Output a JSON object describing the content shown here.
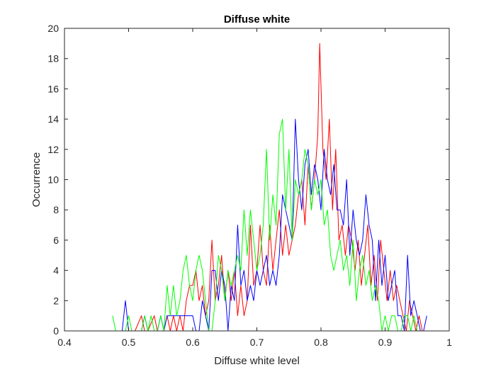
{
  "chart_data": {
    "type": "line",
    "title": "Diffuse white",
    "xlabel": "Diffuse white level",
    "ylabel": "Occurrence",
    "xlim": [
      0.4,
      1.0
    ],
    "ylim": [
      0,
      20
    ],
    "x_ticks": [
      "0.4",
      "0.5",
      "0.6",
      "0.7",
      "0.8",
      "0.9",
      "1"
    ],
    "y_ticks": [
      "0",
      "2",
      "4",
      "6",
      "8",
      "10",
      "12",
      "14",
      "16",
      "18",
      "20"
    ],
    "grid": false,
    "legend": "none",
    "series": [
      {
        "color": "#ff0000",
        "points": [
          [
            0.475,
            0
          ],
          [
            0.49,
            0
          ],
          [
            0.51,
            0
          ],
          [
            0.52,
            1
          ],
          [
            0.525,
            0
          ],
          [
            0.53,
            0
          ],
          [
            0.54,
            1
          ],
          [
            0.545,
            0
          ],
          [
            0.55,
            0
          ],
          [
            0.555,
            0
          ],
          [
            0.56,
            1
          ],
          [
            0.565,
            0
          ],
          [
            0.57,
            1
          ],
          [
            0.575,
            0
          ],
          [
            0.58,
            1
          ],
          [
            0.585,
            0
          ],
          [
            0.59,
            2
          ],
          [
            0.595,
            3
          ],
          [
            0.6,
            3
          ],
          [
            0.605,
            4
          ],
          [
            0.61,
            2
          ],
          [
            0.615,
            3
          ],
          [
            0.62,
            1
          ],
          [
            0.625,
            2
          ],
          [
            0.63,
            6
          ],
          [
            0.635,
            2
          ],
          [
            0.64,
            3
          ],
          [
            0.645,
            5
          ],
          [
            0.65,
            2
          ],
          [
            0.655,
            4
          ],
          [
            0.66,
            2
          ],
          [
            0.665,
            4
          ],
          [
            0.67,
            1
          ],
          [
            0.675,
            3
          ],
          [
            0.68,
            1
          ],
          [
            0.685,
            2
          ],
          [
            0.69,
            7
          ],
          [
            0.695,
            3
          ],
          [
            0.7,
            4
          ],
          [
            0.705,
            7
          ],
          [
            0.71,
            4
          ],
          [
            0.715,
            3
          ],
          [
            0.72,
            7
          ],
          [
            0.725,
            4
          ],
          [
            0.73,
            6
          ],
          [
            0.735,
            8
          ],
          [
            0.74,
            5
          ],
          [
            0.745,
            7
          ],
          [
            0.75,
            5
          ],
          [
            0.755,
            6
          ],
          [
            0.76,
            7
          ],
          [
            0.765,
            9
          ],
          [
            0.77,
            10
          ],
          [
            0.775,
            7
          ],
          [
            0.78,
            11
          ],
          [
            0.785,
            8
          ],
          [
            0.79,
            10
          ],
          [
            0.795,
            13
          ],
          [
            0.798,
            19
          ],
          [
            0.803,
            12
          ],
          [
            0.808,
            10
          ],
          [
            0.813,
            14
          ],
          [
            0.818,
            8
          ],
          [
            0.823,
            12
          ],
          [
            0.828,
            6
          ],
          [
            0.833,
            7
          ],
          [
            0.838,
            5
          ],
          [
            0.843,
            7
          ],
          [
            0.848,
            6
          ],
          [
            0.853,
            4
          ],
          [
            0.858,
            6
          ],
          [
            0.863,
            3
          ],
          [
            0.868,
            5
          ],
          [
            0.873,
            7
          ],
          [
            0.878,
            3
          ],
          [
            0.883,
            5
          ],
          [
            0.888,
            2
          ],
          [
            0.893,
            6
          ],
          [
            0.898,
            4
          ],
          [
            0.903,
            2
          ],
          [
            0.908,
            4
          ],
          [
            0.913,
            2
          ],
          [
            0.918,
            3
          ],
          [
            0.923,
            2
          ],
          [
            0.928,
            1
          ],
          [
            0.933,
            0
          ],
          [
            0.938,
            2
          ],
          [
            0.943,
            1
          ],
          [
            0.948,
            0
          ],
          [
            0.953,
            1
          ],
          [
            0.958,
            0
          ]
        ]
      },
      {
        "color": "#0000ff",
        "points": [
          [
            0.475,
            0
          ],
          [
            0.49,
            0
          ],
          [
            0.495,
            2
          ],
          [
            0.5,
            0
          ],
          [
            0.51,
            0
          ],
          [
            0.52,
            0
          ],
          [
            0.525,
            1
          ],
          [
            0.53,
            0
          ],
          [
            0.545,
            0
          ],
          [
            0.55,
            1
          ],
          [
            0.555,
            0
          ],
          [
            0.56,
            1
          ],
          [
            0.57,
            1
          ],
          [
            0.575,
            1
          ],
          [
            0.58,
            1
          ],
          [
            0.59,
            1
          ],
          [
            0.6,
            1
          ],
          [
            0.605,
            0
          ],
          [
            0.61,
            0
          ],
          [
            0.615,
            2
          ],
          [
            0.62,
            1
          ],
          [
            0.625,
            0
          ],
          [
            0.63,
            4
          ],
          [
            0.635,
            4
          ],
          [
            0.64,
            2
          ],
          [
            0.645,
            4
          ],
          [
            0.65,
            3
          ],
          [
            0.655,
            0
          ],
          [
            0.66,
            3
          ],
          [
            0.665,
            2
          ],
          [
            0.67,
            7
          ],
          [
            0.675,
            3
          ],
          [
            0.68,
            4
          ],
          [
            0.685,
            2
          ],
          [
            0.69,
            3
          ],
          [
            0.695,
            2
          ],
          [
            0.7,
            4
          ],
          [
            0.705,
            3
          ],
          [
            0.71,
            4
          ],
          [
            0.715,
            5
          ],
          [
            0.72,
            3
          ],
          [
            0.725,
            4
          ],
          [
            0.73,
            3
          ],
          [
            0.735,
            5
          ],
          [
            0.74,
            9
          ],
          [
            0.745,
            8
          ],
          [
            0.75,
            7
          ],
          [
            0.755,
            6
          ],
          [
            0.76,
            14
          ],
          [
            0.765,
            10
          ],
          [
            0.77,
            8
          ],
          [
            0.775,
            11
          ],
          [
            0.78,
            12
          ],
          [
            0.785,
            9
          ],
          [
            0.79,
            11
          ],
          [
            0.795,
            10
          ],
          [
            0.8,
            8
          ],
          [
            0.805,
            12
          ],
          [
            0.81,
            10
          ],
          [
            0.815,
            9
          ],
          [
            0.82,
            11
          ],
          [
            0.825,
            8
          ],
          [
            0.83,
            8
          ],
          [
            0.835,
            7
          ],
          [
            0.84,
            10
          ],
          [
            0.845,
            5
          ],
          [
            0.85,
            8
          ],
          [
            0.855,
            6
          ],
          [
            0.86,
            5
          ],
          [
            0.865,
            6
          ],
          [
            0.87,
            9
          ],
          [
            0.875,
            7
          ],
          [
            0.88,
            6
          ],
          [
            0.885,
            2
          ],
          [
            0.89,
            6
          ],
          [
            0.895,
            3
          ],
          [
            0.9,
            5
          ],
          [
            0.905,
            2
          ],
          [
            0.91,
            3
          ],
          [
            0.915,
            4
          ],
          [
            0.92,
            1
          ],
          [
            0.925,
            1
          ],
          [
            0.93,
            0
          ],
          [
            0.935,
            5
          ],
          [
            0.94,
            1
          ],
          [
            0.945,
            2
          ],
          [
            0.95,
            1
          ],
          [
            0.955,
            0
          ],
          [
            0.96,
            0
          ],
          [
            0.965,
            1
          ]
        ]
      },
      {
        "color": "#00ff00",
        "points": [
          [
            0.475,
            1
          ],
          [
            0.48,
            0
          ],
          [
            0.485,
            0
          ],
          [
            0.49,
            0
          ],
          [
            0.495,
            0
          ],
          [
            0.5,
            1
          ],
          [
            0.505,
            0
          ],
          [
            0.51,
            0
          ],
          [
            0.515,
            0
          ],
          [
            0.52,
            0
          ],
          [
            0.525,
            1
          ],
          [
            0.53,
            0
          ],
          [
            0.535,
            1
          ],
          [
            0.54,
            0
          ],
          [
            0.545,
            0
          ],
          [
            0.55,
            1
          ],
          [
            0.555,
            0
          ],
          [
            0.56,
            3
          ],
          [
            0.565,
            1
          ],
          [
            0.57,
            3
          ],
          [
            0.575,
            1
          ],
          [
            0.58,
            2
          ],
          [
            0.585,
            4
          ],
          [
            0.59,
            5
          ],
          [
            0.595,
            3
          ],
          [
            0.6,
            2
          ],
          [
            0.605,
            4
          ],
          [
            0.61,
            5
          ],
          [
            0.615,
            4
          ],
          [
            0.62,
            2
          ],
          [
            0.625,
            0
          ],
          [
            0.63,
            0
          ],
          [
            0.635,
            2
          ],
          [
            0.64,
            5
          ],
          [
            0.645,
            4
          ],
          [
            0.65,
            2
          ],
          [
            0.655,
            4
          ],
          [
            0.66,
            3
          ],
          [
            0.665,
            4
          ],
          [
            0.67,
            5
          ],
          [
            0.675,
            4
          ],
          [
            0.68,
            8
          ],
          [
            0.685,
            5
          ],
          [
            0.69,
            8
          ],
          [
            0.695,
            6
          ],
          [
            0.7,
            4
          ],
          [
            0.705,
            5
          ],
          [
            0.71,
            7
          ],
          [
            0.715,
            12
          ],
          [
            0.72,
            6
          ],
          [
            0.725,
            9
          ],
          [
            0.73,
            7
          ],
          [
            0.735,
            13
          ],
          [
            0.74,
            14
          ],
          [
            0.745,
            8
          ],
          [
            0.75,
            12
          ],
          [
            0.755,
            6
          ],
          [
            0.76,
            10
          ],
          [
            0.765,
            9
          ],
          [
            0.77,
            10
          ],
          [
            0.775,
            12
          ],
          [
            0.78,
            11
          ],
          [
            0.785,
            8
          ],
          [
            0.79,
            10
          ],
          [
            0.795,
            9
          ],
          [
            0.8,
            10
          ],
          [
            0.805,
            7
          ],
          [
            0.81,
            8
          ],
          [
            0.815,
            5
          ],
          [
            0.82,
            4
          ],
          [
            0.825,
            5
          ],
          [
            0.83,
            6
          ],
          [
            0.835,
            4
          ],
          [
            0.84,
            5
          ],
          [
            0.845,
            3
          ],
          [
            0.85,
            6
          ],
          [
            0.855,
            2
          ],
          [
            0.86,
            4
          ],
          [
            0.865,
            5
          ],
          [
            0.87,
            3
          ],
          [
            0.875,
            4
          ],
          [
            0.88,
            2
          ],
          [
            0.885,
            3
          ],
          [
            0.89,
            2
          ],
          [
            0.895,
            0
          ],
          [
            0.9,
            1
          ],
          [
            0.905,
            0
          ],
          [
            0.91,
            1
          ],
          [
            0.915,
            1
          ],
          [
            0.92,
            0
          ],
          [
            0.925,
            0
          ],
          [
            0.93,
            1
          ],
          [
            0.935,
            1
          ],
          [
            0.94,
            0
          ],
          [
            0.945,
            1
          ],
          [
            0.95,
            0
          ]
        ]
      }
    ]
  }
}
